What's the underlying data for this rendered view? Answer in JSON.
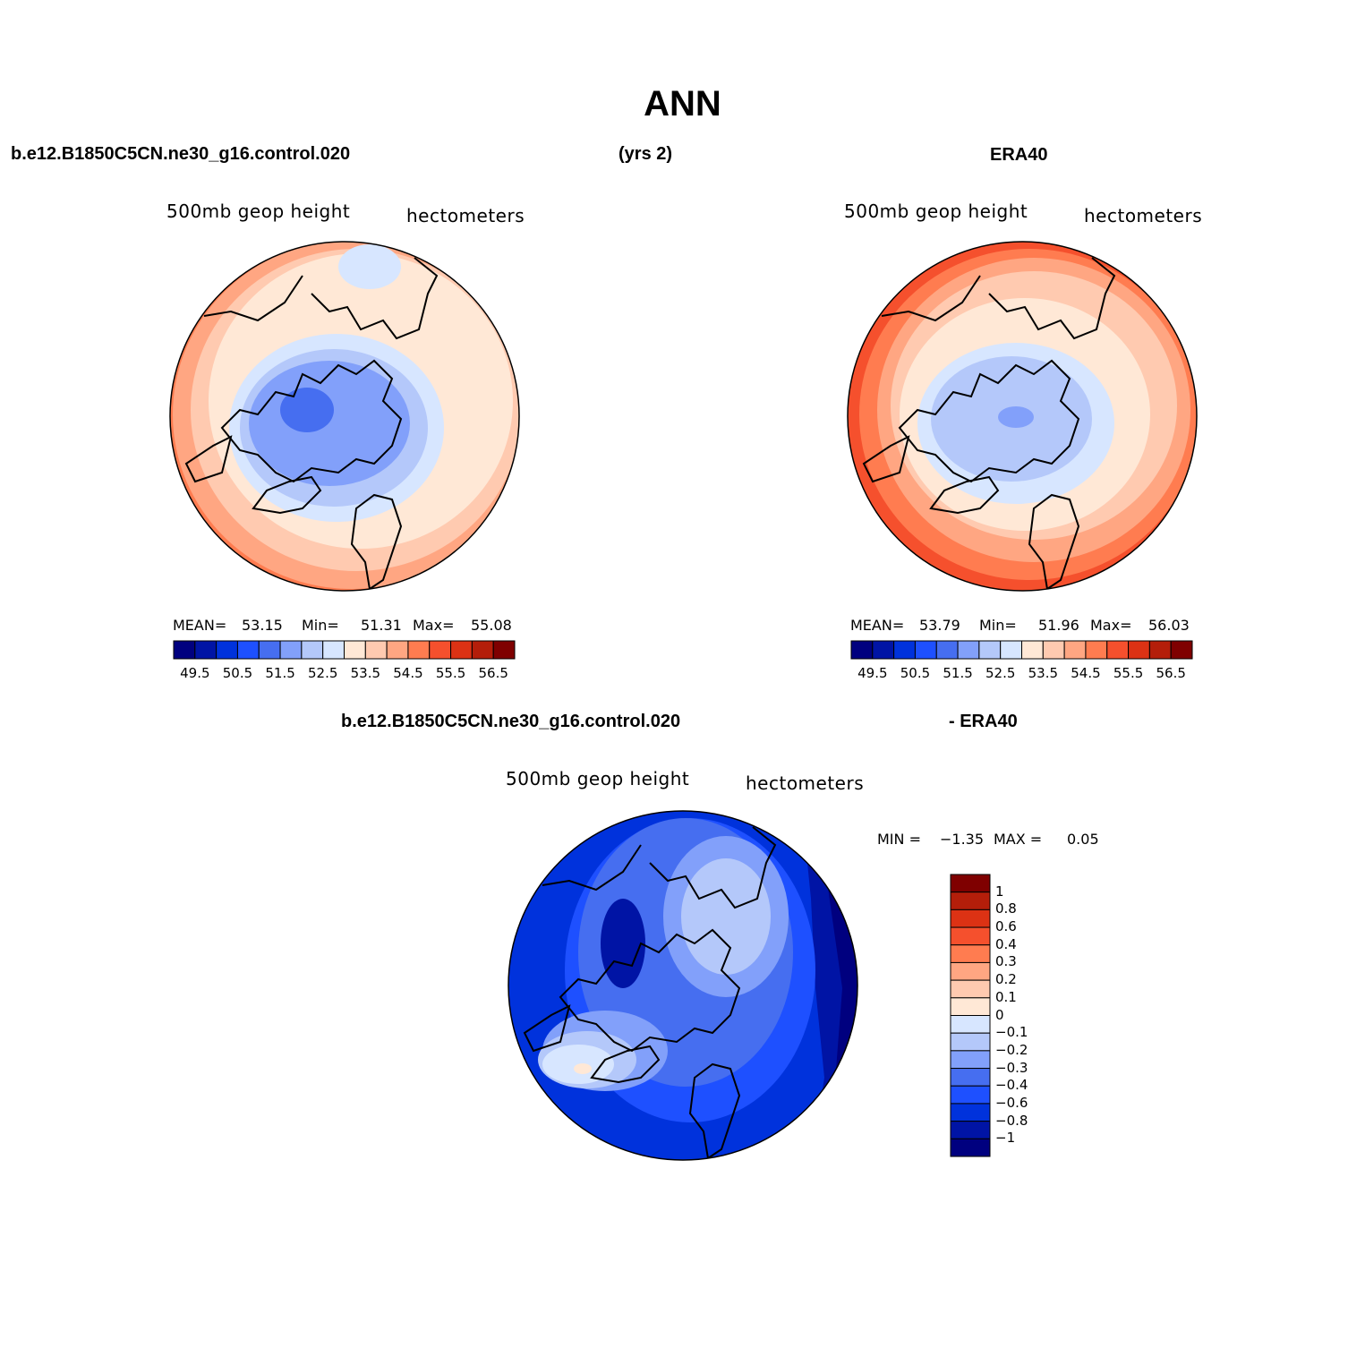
{
  "title": "ANN",
  "top_left_header": "b.e12.B1850C5CN.ne30_g16.control.020",
  "top_center_header": "(yrs 2)",
  "top_right_header": "ERA40",
  "bottom_header_left": "b.e12.B1850C5CN.ne30_g16.control.020",
  "bottom_header_right": "- ERA40",
  "colors": {
    "field_scale": [
      "#00007f",
      "#0014a5",
      "#0032dc",
      "#1e50ff",
      "#466ef0",
      "#82a0fa",
      "#b4c8fa",
      "#d7e6ff",
      "#ffe8d6",
      "#ffcab0",
      "#ffa682",
      "#ff7c50",
      "#f5502d",
      "#dc3214",
      "#b41e0a",
      "#7f0000"
    ],
    "diff_scale": [
      "#00007f",
      "#0014a5",
      "#0032dc",
      "#1e50ff",
      "#466ef0",
      "#82a0fa",
      "#b4c8fa",
      "#d7e6ff",
      "#ffe8d6",
      "#ffcab0",
      "#ffa682",
      "#ff7c50",
      "#f5502d",
      "#dc3214",
      "#b41e0a",
      "#7f0000"
    ]
  },
  "panels": [
    {
      "variable": "500mb  geop  height",
      "units": "hectometers",
      "stats": {
        "mean_label": "MEAN=",
        "mean": "53.15",
        "min_label": "Min=",
        "min": "51.31",
        "max_label": "Max=",
        "max": "55.08"
      },
      "colorbar_labels": [
        "49.5",
        "50.5",
        "51.5",
        "52.5",
        "53.5",
        "54.5",
        "55.5",
        "56.5"
      ]
    },
    {
      "variable": "500mb  geop  height",
      "units": "hectometers",
      "stats": {
        "mean_label": "MEAN=",
        "mean": "53.79",
        "min_label": "Min=",
        "min": "51.96",
        "max_label": "Max=",
        "max": "56.03"
      },
      "colorbar_labels": [
        "49.5",
        "50.5",
        "51.5",
        "52.5",
        "53.5",
        "54.5",
        "55.5",
        "56.5"
      ]
    }
  ],
  "diff_panel": {
    "variable": "500mb  geop  height",
    "units": "hectometers",
    "stats": {
      "min_label": "MIN =",
      "min": "−1.35",
      "max_label": "MAX =",
      "max": "0.05"
    },
    "colorbar_labels": [
      "1",
      "0.8",
      "0.6",
      "0.4",
      "0.3",
      "0.2",
      "0.1",
      "0",
      "−0.1",
      "−0.2",
      "−0.3",
      "−0.4",
      "−0.6",
      "−0.8",
      "−1"
    ]
  }
}
